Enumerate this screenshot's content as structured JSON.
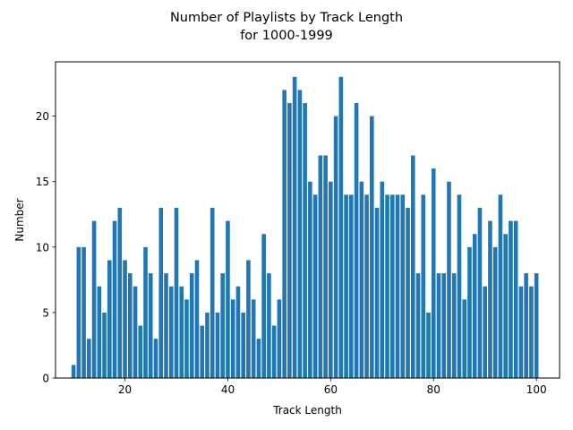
{
  "chart_data": {
    "type": "bar",
    "title": "Number of Playlists by Track Length",
    "subtitle": "for 1000-1999",
    "xlabel": "Track Length",
    "ylabel": "Number",
    "xlim": [
      6.5,
      104.5
    ],
    "ylim": [
      0,
      24.15
    ],
    "x_ticks": [
      20,
      40,
      60,
      80,
      100
    ],
    "y_ticks": [
      0,
      5,
      10,
      15,
      20
    ],
    "grid": false,
    "bar_color": "#1f77b4",
    "x": [
      10,
      11,
      12,
      13,
      14,
      15,
      16,
      17,
      18,
      19,
      20,
      21,
      22,
      23,
      24,
      25,
      26,
      27,
      28,
      29,
      30,
      31,
      32,
      33,
      34,
      35,
      36,
      37,
      38,
      39,
      40,
      41,
      42,
      43,
      44,
      45,
      46,
      47,
      48,
      49,
      50,
      51,
      52,
      53,
      54,
      55,
      56,
      57,
      58,
      59,
      60,
      61,
      62,
      63,
      64,
      65,
      66,
      67,
      68,
      69,
      70,
      71,
      72,
      73,
      74,
      75,
      76,
      77,
      78,
      79,
      80,
      81,
      82,
      83,
      84,
      85,
      86,
      87,
      88,
      89,
      90,
      91,
      92,
      93,
      94,
      95,
      96,
      97,
      98,
      99,
      100
    ],
    "values": [
      1,
      10,
      10,
      3,
      12,
      7,
      5,
      9,
      12,
      13,
      9,
      8,
      7,
      4,
      10,
      8,
      3,
      13,
      8,
      7,
      13,
      7,
      6,
      8,
      9,
      4,
      5,
      13,
      5,
      8,
      12,
      6,
      7,
      5,
      9,
      6,
      3,
      11,
      8,
      4,
      6,
      22,
      21,
      23,
      22,
      21,
      15,
      14,
      17,
      17,
      15,
      20,
      23,
      14,
      14,
      21,
      15,
      14,
      20,
      13,
      15,
      14,
      14,
      14,
      14,
      13,
      17,
      8,
      14,
      5,
      16,
      8,
      8,
      15,
      8,
      14,
      6,
      10,
      11,
      13,
      7,
      12,
      10,
      14,
      11,
      12,
      12,
      7,
      8,
      7,
      8
    ]
  }
}
